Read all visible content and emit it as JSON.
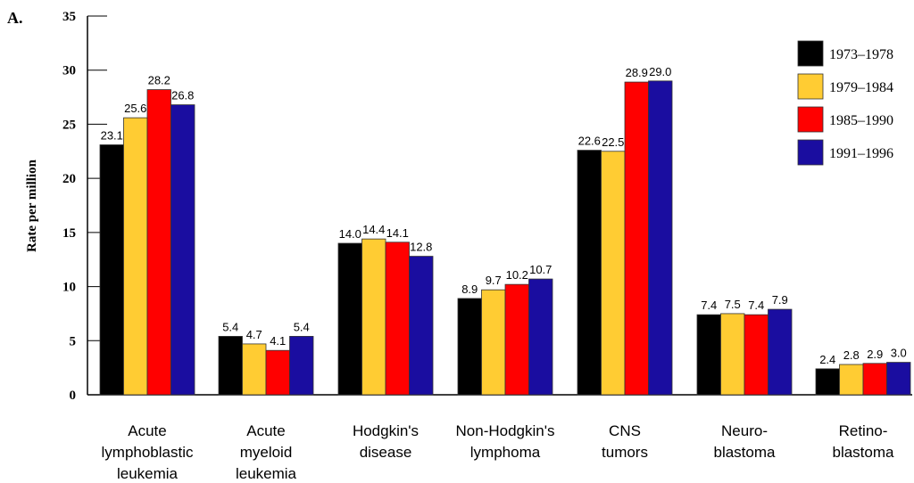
{
  "panel_label": "A.",
  "chart_data": {
    "type": "bar",
    "title": "",
    "xlabel": "",
    "ylabel": "Rate per million",
    "ylim": [
      0,
      35
    ],
    "yticks": [
      "0",
      "5",
      "10",
      "15",
      "20",
      "25",
      "30",
      "35"
    ],
    "legend_position": "right",
    "grid": false,
    "categories": [
      [
        "Acute",
        "lymphoblastic",
        "leukemia"
      ],
      [
        "Acute",
        "myeloid",
        "leukemia"
      ],
      [
        "Hodgkin's",
        "disease"
      ],
      [
        "Non-Hodgkin's",
        "lymphoma"
      ],
      [
        "CNS",
        "tumors"
      ],
      [
        "Neuro-",
        "blastoma"
      ],
      [
        "Retino-",
        "blastoma"
      ]
    ],
    "series": [
      {
        "name": "1973–1978",
        "color": "#000000",
        "values": [
          23.1,
          5.4,
          14.0,
          8.9,
          22.6,
          7.4,
          2.4
        ],
        "labels": [
          "23.1",
          "5.4",
          "14.0",
          "8.9",
          "22.6",
          "7.4",
          "2.4"
        ]
      },
      {
        "name": "1979–1984",
        "color": "#FFCC33",
        "values": [
          25.6,
          4.7,
          14.4,
          9.7,
          22.5,
          7.5,
          2.8
        ],
        "labels": [
          "25.6",
          "4.7",
          "14.4",
          "9.7",
          "22.5",
          "7.5",
          "2.8"
        ]
      },
      {
        "name": "1985–1990",
        "color": "#FF0000",
        "values": [
          28.2,
          4.1,
          14.1,
          10.2,
          28.9,
          7.4,
          2.9
        ],
        "labels": [
          "28.2",
          "4.1",
          "14.1",
          "10.2",
          "28.9",
          "7.4",
          "2.9"
        ]
      },
      {
        "name": "1991–1996",
        "color": "#1A0DA0",
        "values": [
          26.8,
          5.4,
          12.8,
          10.7,
          29.0,
          7.9,
          3.0
        ],
        "labels": [
          "26.8",
          "5.4",
          "12.8",
          "10.7",
          "29.0",
          "7.9",
          "3.0"
        ]
      }
    ]
  }
}
